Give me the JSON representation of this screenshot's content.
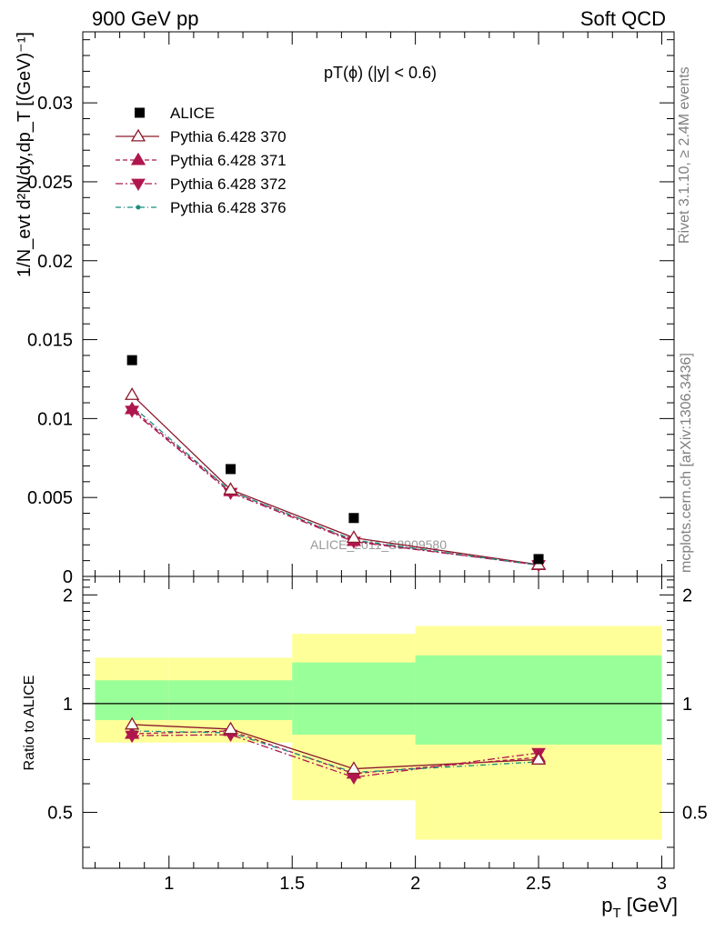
{
  "header": {
    "left": "900 GeV pp",
    "right": "Soft QCD"
  },
  "side": {
    "rivet": "Rivet 3.1.10, ≥ 2.4M events",
    "mcplots": "mcplots.cern.ch [arXiv:1306.3436]"
  },
  "chart_data": {
    "type": "scatter",
    "title": "pT(ϕ) (|y| < 0.6)",
    "xlabel": "p_T [GeV]",
    "ylabel": "1/N_evt d²N/dy,dp_T [(GeV)⁻¹]",
    "ratio_ylabel": "Ratio to ALICE",
    "watermark": "ALICE_2011_S8909580",
    "xlim": [
      0.65,
      3.05
    ],
    "ylim": [
      0,
      0.0345
    ],
    "ratio_ylim": [
      0.35,
      2.25
    ],
    "x_ticks": [
      "1",
      "1.5",
      "2",
      "2.5",
      "3"
    ],
    "y_ticks": [
      "0",
      "0.005",
      "0.01",
      "0.015",
      "0.02",
      "0.025",
      "0.03"
    ],
    "ratio_ticks": [
      "0.5",
      "1",
      "2"
    ],
    "x": [
      0.85,
      1.25,
      1.75,
      2.5
    ],
    "bin_edges": [
      0.7,
      1.0,
      1.5,
      2.0,
      3.0
    ],
    "band_inner": [
      [
        0.9,
        1.16
      ],
      [
        0.9,
        1.16
      ],
      [
        0.82,
        1.3
      ],
      [
        0.77,
        1.36
      ]
    ],
    "band_outer": [
      [
        0.78,
        1.34
      ],
      [
        0.78,
        1.34
      ],
      [
        0.54,
        1.56
      ],
      [
        0.42,
        1.64
      ]
    ],
    "reference": {
      "name": "ALICE",
      "color": "#000000",
      "values": [
        0.0137,
        0.0068,
        0.0037,
        0.0011
      ]
    },
    "series": [
      {
        "name": "Pythia 6.428 370",
        "color": "#8b1a2b",
        "marker": "triangle-up-open",
        "dash": "",
        "values": [
          0.0115,
          0.0055,
          0.00245,
          0.00075
        ],
        "ratio": [
          0.875,
          0.85,
          0.66,
          0.7
        ]
      },
      {
        "name": "Pythia 6.428 371",
        "color": "#b0164e",
        "marker": "triangle-up-filled",
        "dash": "5,3",
        "values": [
          0.0106,
          0.0054,
          0.00225,
          0.00072
        ],
        "ratio": [
          0.825,
          0.84,
          0.64,
          0.71
        ]
      },
      {
        "name": "Pythia 6.428 372",
        "color": "#b0164e",
        "marker": "triangle-down-filled",
        "dash": "8,3,2,3",
        "values": [
          0.0105,
          0.0053,
          0.0022,
          0.00072
        ],
        "ratio": [
          0.815,
          0.82,
          0.625,
          0.73
        ]
      },
      {
        "name": "Pythia 6.428 376",
        "color": "#1a8f80",
        "marker": "dot",
        "dash": "6,3,1,3",
        "values": [
          0.0108,
          0.0054,
          0.0023,
          0.00072
        ],
        "ratio": [
          0.84,
          0.83,
          0.645,
          0.69
        ]
      }
    ]
  }
}
